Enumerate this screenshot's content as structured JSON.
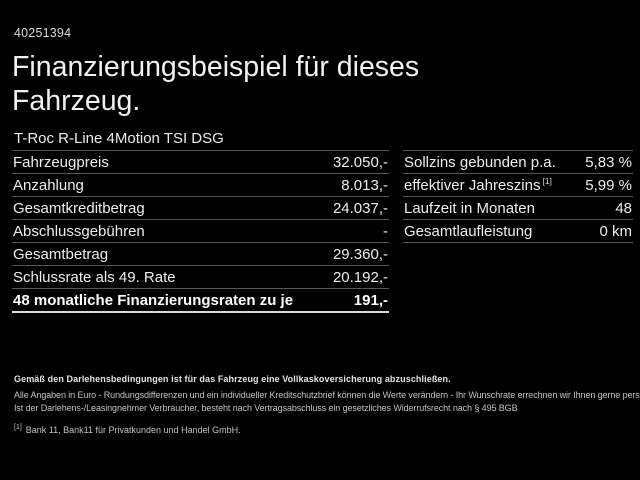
{
  "page": {
    "id_number": "40251394",
    "title_line1": "Finanzierungsbeispiel für dieses",
    "title_line2": "Fahrzeug.",
    "subtitle": "T-Roc R-Line 4Motion TSI DSG"
  },
  "left_table": {
    "rows": [
      {
        "label": "Fahrzeugpreis",
        "value": "32.050,-"
      },
      {
        "label": "Anzahlung",
        "value": "8.013,-"
      },
      {
        "label": "Gesamtkreditbetrag",
        "value": "24.037,-"
      },
      {
        "label": "Abschlussgebühren",
        "value": "-"
      },
      {
        "label": "Gesamtbetrag",
        "value": "29.360,-"
      },
      {
        "label": "Schlussrate als 49. Rate",
        "value": "20.192,-"
      },
      {
        "label": "48 monatliche Finanzierungsraten zu je",
        "value": "191,-",
        "bold": true
      }
    ]
  },
  "right_table": {
    "rows": [
      {
        "label": "Sollzins gebunden p.a.",
        "value": "5,83 %"
      },
      {
        "label": "effektiver Jahreszins",
        "sup": "[1]",
        "value": "5,99 %"
      },
      {
        "label": "Laufzeit in Monaten",
        "value": "48"
      },
      {
        "label": "Gesamtlaufleistung",
        "value": "0 km"
      }
    ]
  },
  "fine_print": {
    "bold_line": "Gemäß den Darlehensbedingungen ist für das Fahrzeug eine Vollkaskoversicherung abzuschließen.",
    "line2": "Alle Angaben in Euro - Rundungsdifferenzen und ein individueller Kreditschutzbrief können die Werte verändern - Ihr Wunschrate errechnen wir Ihnen gerne persönlich",
    "line3": "Ist der Darlehens-/Leasingnehmer Verbraucher, besteht nach Vertragsabschluss ein gesetzliches Widerrufsrecht nach § 495 BGB",
    "footnote_marker": "[1]",
    "footnote_text": "Bank 11, Bank11 für Privatkunden und Handel GmbH."
  },
  "colors": {
    "background": "#000000",
    "text": "#ededed",
    "divider": "#585858",
    "strong_divider": "#d9d9d9"
  }
}
